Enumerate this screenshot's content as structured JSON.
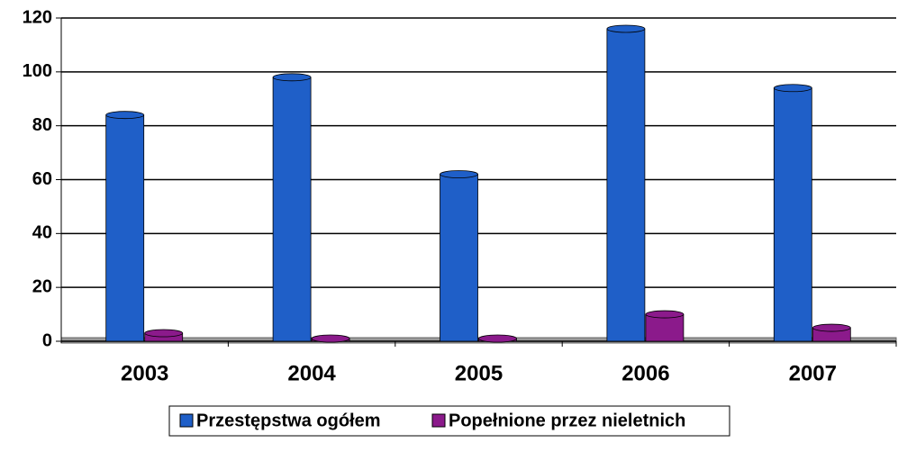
{
  "chart_data": {
    "type": "bar",
    "categories": [
      "2003",
      "2004",
      "2005",
      "2006",
      "2007"
    ],
    "series": [
      {
        "name": "Przestępstwa ogółem",
        "color": "#1f5fc8",
        "values": [
          84,
          98,
          62,
          116,
          94
        ]
      },
      {
        "name": "Popełnione przez nieletnich",
        "color": "#8b1a8b",
        "values": [
          3,
          1,
          1,
          10,
          5
        ]
      }
    ],
    "ylim": [
      0,
      120
    ],
    "yticks": [
      0,
      20,
      40,
      60,
      80,
      100,
      120
    ],
    "grid": true,
    "legend": "bottom"
  }
}
